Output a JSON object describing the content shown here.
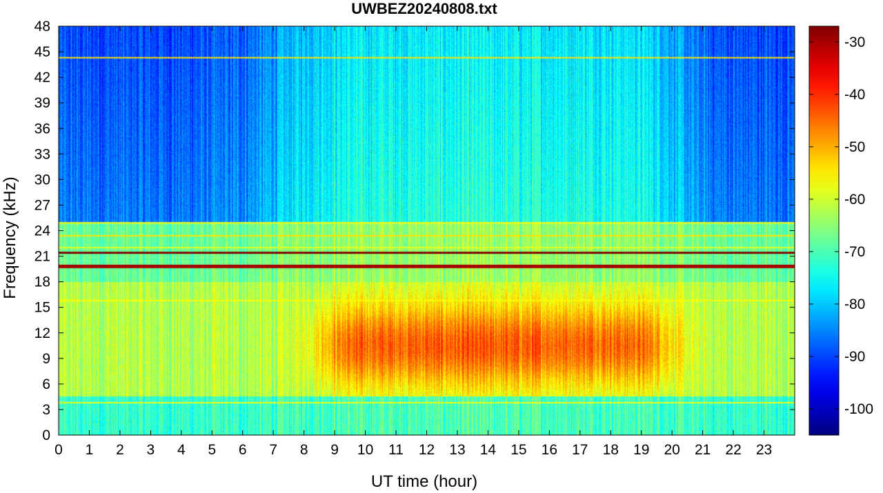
{
  "chart_data": {
    "type": "heatmap",
    "title": "UWBEZ20240808.txt",
    "xlabel": "UT time (hour)",
    "ylabel": "Frequency (kHz)",
    "xlim": [
      0,
      24
    ],
    "ylim": [
      0,
      48
    ],
    "x_ticks": [
      "0",
      "1",
      "2",
      "3",
      "4",
      "5",
      "6",
      "7",
      "8",
      "9",
      "10",
      "11",
      "12",
      "13",
      "14",
      "15",
      "16",
      "17",
      "18",
      "19",
      "20",
      "21",
      "22",
      "23"
    ],
    "y_ticks": [
      "0",
      "3",
      "6",
      "9",
      "12",
      "15",
      "18",
      "21",
      "24",
      "27",
      "30",
      "33",
      "36",
      "39",
      "42",
      "45",
      "48"
    ],
    "colormap": "jet",
    "colorbar": {
      "clim": [
        -105,
        -27
      ],
      "ticks": [
        "-100",
        "-90",
        "-80",
        "-70",
        "-60",
        "-50",
        "-40",
        "-30"
      ],
      "tick_values": [
        -100,
        -90,
        -80,
        -70,
        -60,
        -50,
        -40,
        -30
      ]
    },
    "features": {
      "background_high_freq_night_dBm": -88,
      "background_high_freq_day_dBm": -75,
      "daytime_sferics_band_kHz": [
        5,
        16
      ],
      "daytime_sferics_hours": [
        8.5,
        20
      ],
      "daytime_sferics_peak_dBm": -48,
      "strong_transmitter_lines_kHz": [
        19.8,
        21.4
      ],
      "strong_transmitter_peak_dBm": -30,
      "other_lines_kHz": [
        3.8,
        24.9,
        23.4,
        22.0,
        15.8,
        44.3
      ]
    }
  }
}
